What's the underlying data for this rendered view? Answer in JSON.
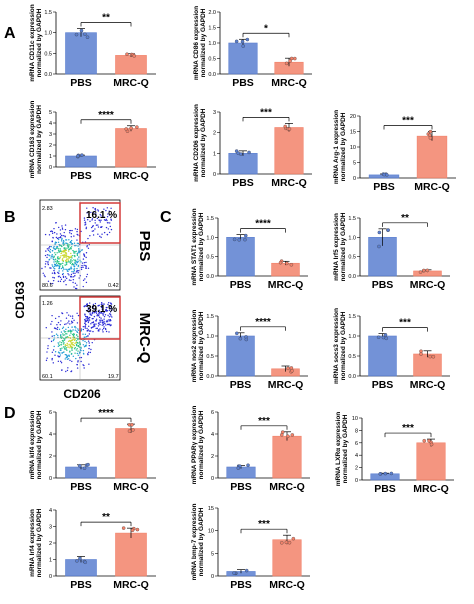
{
  "panel_labels": {
    "A": "A",
    "B": "B",
    "C": "C",
    "D": "D"
  },
  "colors": {
    "pbs": "#5b7fd0",
    "mrcq": "#f2826a",
    "gate": "#d33a3a"
  },
  "flow": {
    "y_axis": "CD163",
    "x_axis": "CD206",
    "top": {
      "label": "PBS",
      "gate_pct": "16.1 %",
      "q_tl": "2.83",
      "q_bl": "80.6",
      "q_br": "0.42"
    },
    "bottom": {
      "label": "MRC-Q",
      "gate_pct": "39.1 %",
      "q_tl": "1.26",
      "q_bl": "60.1",
      "q_br": "19.7"
    }
  },
  "chart_data": [
    {
      "id": "cd11c",
      "type": "bar",
      "ylabel": [
        "mRNA CD11c expression",
        "normalized by GAPDH"
      ],
      "categories": [
        "PBS",
        "MRC-Q"
      ],
      "values": [
        1.0,
        0.45
      ],
      "errors": [
        0.1,
        0.04
      ],
      "ylim": [
        0,
        1.5
      ],
      "yticks": [
        "0.0",
        "0.5",
        "1.0",
        "1.5"
      ],
      "sig": "**"
    },
    {
      "id": "cd86",
      "type": "bar",
      "ylabel": [
        "mRNA CD86 expression",
        "normalized by GAPDH"
      ],
      "categories": [
        "PBS",
        "MRC-Q"
      ],
      "values": [
        1.0,
        0.38
      ],
      "errors": [
        0.12,
        0.13
      ],
      "ylim": [
        0,
        2.0
      ],
      "yticks": [
        "0.0",
        "0.5",
        "1.0",
        "1.5",
        "2.0"
      ],
      "sig": "*"
    },
    {
      "id": "cd163",
      "type": "bar",
      "ylabel": [
        "mRNA CD163 expression",
        "normalized by GAPDH"
      ],
      "categories": [
        "PBS",
        "MRC-Q"
      ],
      "values": [
        1.0,
        3.5
      ],
      "errors": [
        0.08,
        0.25
      ],
      "ylim": [
        0,
        5
      ],
      "yticks": [
        "0",
        "1",
        "2",
        "3",
        "4",
        "5"
      ],
      "sig": "****"
    },
    {
      "id": "cd206",
      "type": "bar",
      "ylabel": [
        "mRNA CD206 expression",
        "normalized by GAPDH"
      ],
      "categories": [
        "PBS",
        "MRC-Q"
      ],
      "values": [
        1.0,
        2.25
      ],
      "errors": [
        0.12,
        0.2
      ],
      "ylim": [
        0,
        3
      ],
      "yticks": [
        "0",
        "1",
        "2",
        "3"
      ],
      "sig": "***"
    },
    {
      "id": "arg1",
      "type": "bar",
      "ylabel": [
        "mRNA Arg-1 expression",
        "normalized by GAPDH"
      ],
      "categories": [
        "PBS",
        "MRC-Q"
      ],
      "values": [
        1.0,
        13.5
      ],
      "errors": [
        0.3,
        1.5
      ],
      "ylim": [
        0,
        20
      ],
      "yticks": [
        "0",
        "5",
        "10",
        "15",
        "20"
      ],
      "sig": "***"
    },
    {
      "id": "stat1",
      "type": "bar",
      "ylabel": [
        "mRNA STAT1 expression",
        "normalized by GAPDH"
      ],
      "categories": [
        "PBS",
        "MRC-Q"
      ],
      "values": [
        1.0,
        0.33
      ],
      "errors": [
        0.07,
        0.05
      ],
      "ylim": [
        0,
        1.5
      ],
      "yticks": [
        "0.0",
        "0.5",
        "1.0",
        "1.5"
      ],
      "sig": "****"
    },
    {
      "id": "irf5",
      "type": "bar",
      "ylabel": [
        "mRNA Irf5 expression",
        "normalized by GAPDH"
      ],
      "categories": [
        "PBS",
        "MRC-Q"
      ],
      "values": [
        1.0,
        0.13
      ],
      "errors": [
        0.22,
        0.03
      ],
      "ylim": [
        0,
        1.5
      ],
      "yticks": [
        "0.0",
        "0.5",
        "1.0",
        "1.5"
      ],
      "sig": "**"
    },
    {
      "id": "nos2",
      "type": "bar",
      "ylabel": [
        "mRNA nos2 expression",
        "normalized by GAPDH"
      ],
      "categories": [
        "PBS",
        "MRC-Q"
      ],
      "values": [
        1.0,
        0.18
      ],
      "errors": [
        0.08,
        0.07
      ],
      "ylim": [
        0,
        1.5
      ],
      "yticks": [
        "0.0",
        "0.5",
        "1.0",
        "1.5"
      ],
      "sig": "****"
    },
    {
      "id": "socs3",
      "type": "bar",
      "ylabel": [
        "mRNA socs3 expression",
        "normalized by GAPDH"
      ],
      "categories": [
        "PBS",
        "MRC-Q"
      ],
      "values": [
        1.0,
        0.55
      ],
      "errors": [
        0.06,
        0.08
      ],
      "ylim": [
        0,
        1.5
      ],
      "yticks": [
        "0.0",
        "0.5",
        "1.0",
        "1.5"
      ],
      "sig": "***"
    },
    {
      "id": "klf4",
      "type": "bar",
      "ylabel": [
        "mRNA klf4 expression",
        "normalized by GAPDH"
      ],
      "categories": [
        "PBS",
        "MRC-Q"
      ],
      "values": [
        1.0,
        4.5
      ],
      "errors": [
        0.2,
        0.4
      ],
      "ylim": [
        0,
        6
      ],
      "yticks": [
        "0",
        "2",
        "4",
        "6"
      ],
      "sig": "****"
    },
    {
      "id": "ppar",
      "type": "bar",
      "ylabel": [
        "mRNA PPARγ expression",
        "normalized by GAPDH"
      ],
      "categories": [
        "PBS",
        "MRC-Q"
      ],
      "values": [
        1.0,
        3.8
      ],
      "errors": [
        0.15,
        0.4
      ],
      "ylim": [
        0,
        6
      ],
      "yticks": [
        "0",
        "2",
        "4",
        "6"
      ],
      "sig": "***"
    },
    {
      "id": "lxr",
      "type": "bar",
      "ylabel": [
        "mRNA LXRα expression",
        "normalized by GAPDH"
      ],
      "categories": [
        "PBS",
        "MRC-Q"
      ],
      "values": [
        1.0,
        6.0
      ],
      "errors": [
        0.1,
        0.6
      ],
      "ylim": [
        0,
        10
      ],
      "yticks": [
        "0",
        "2",
        "4",
        "6",
        "8",
        "10"
      ],
      "sig": "***"
    },
    {
      "id": "irf4",
      "type": "bar",
      "ylabel": [
        "mRNA Irf4 expression",
        "normalized by GAPDH"
      ],
      "categories": [
        "PBS",
        "MRC-Q"
      ],
      "values": [
        1.0,
        2.6
      ],
      "errors": [
        0.18,
        0.3
      ],
      "ylim": [
        0,
        4
      ],
      "yticks": [
        "0",
        "1",
        "2",
        "3",
        "4"
      ],
      "sig": "**"
    },
    {
      "id": "bmp7",
      "type": "bar",
      "ylabel": [
        "mRNA bmp-7 expression",
        "normalized by GAPDH"
      ],
      "categories": [
        "PBS",
        "MRC-Q"
      ],
      "values": [
        1.0,
        8.0
      ],
      "errors": [
        0.4,
        1.0
      ],
      "ylim": [
        0,
        15
      ],
      "yticks": [
        "0",
        "5",
        "10",
        "15"
      ],
      "sig": "***"
    }
  ]
}
